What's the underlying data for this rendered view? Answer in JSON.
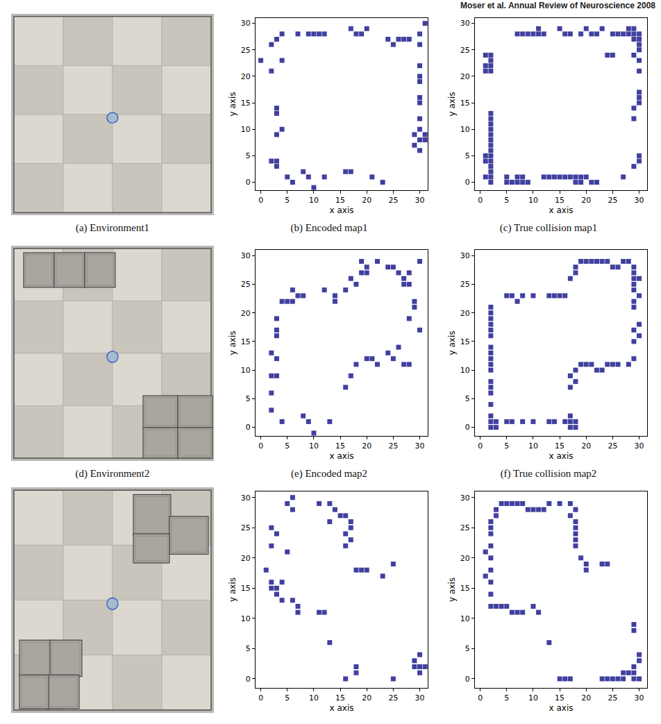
{
  "header": "Moser et al. Annual Review of Neuroscience 2008",
  "environments": [
    {
      "caption": "(a) Environment1"
    },
    {
      "caption": "(d) Environment2"
    },
    {}
  ],
  "chart_data": [
    {
      "type": "scatter",
      "caption": "(b) Encoded map1",
      "x_label": "x axis",
      "y_label": "y axis",
      "color": "#1f1f8f",
      "marker": "square",
      "xlim": [
        -1,
        31.5
      ],
      "ylim": [
        -1.5,
        31
      ],
      "xticks": [
        0,
        5,
        10,
        15,
        20,
        25,
        30
      ],
      "yticks": [
        0,
        5,
        10,
        15,
        20,
        25,
        30
      ],
      "x": [
        0,
        2,
        2,
        3,
        4,
        4,
        3,
        3,
        4,
        3,
        2,
        3,
        3,
        5,
        6,
        8,
        9,
        10,
        12,
        16,
        17,
        21,
        23,
        7,
        9,
        10,
        11,
        12,
        17,
        18,
        19,
        20,
        24,
        25,
        26,
        27,
        28,
        30,
        30,
        31,
        30,
        30,
        30,
        30,
        30,
        30,
        30,
        31,
        30,
        31,
        29,
        30,
        29
      ],
      "values": [
        23,
        21,
        26,
        27,
        28,
        23,
        14,
        13,
        10,
        9,
        4,
        4,
        3,
        1,
        0,
        2,
        1,
        -1,
        1,
        2,
        2,
        1,
        0,
        28,
        28,
        28,
        28,
        28,
        29,
        28,
        28,
        29,
        27,
        26,
        27,
        27,
        27,
        28,
        26,
        30,
        22,
        20,
        19,
        16,
        15,
        12,
        10,
        9,
        8,
        8,
        7,
        6,
        9
      ]
    },
    {
      "type": "scatter",
      "caption": "(c) True collision map1",
      "x_label": "x axis",
      "y_label": "y axis",
      "color": "#1f1f8f",
      "marker": "square",
      "xlim": [
        -1,
        31.5
      ],
      "ylim": [
        -1.5,
        31
      ],
      "xticks": [
        0,
        5,
        10,
        15,
        20,
        25,
        30
      ],
      "yticks": [
        0,
        5,
        10,
        15,
        20,
        25,
        30
      ],
      "x": [
        2,
        2,
        1,
        2,
        2,
        1,
        2,
        1,
        2,
        2,
        2,
        2,
        2,
        2,
        2,
        2,
        2,
        1,
        1,
        2,
        2,
        1,
        2,
        2,
        7,
        8,
        9,
        10,
        11,
        12,
        11,
        15,
        16,
        17,
        19,
        20,
        21,
        22,
        23,
        24,
        25,
        25,
        26,
        27,
        28,
        28,
        29,
        29,
        30,
        30,
        29,
        30,
        30,
        29,
        30,
        30,
        30,
        30,
        30,
        29,
        29,
        30,
        30,
        29,
        5,
        5,
        6,
        7,
        8,
        9,
        7,
        8,
        12,
        13,
        14,
        15,
        16,
        17,
        18,
        19,
        18,
        19,
        20,
        21,
        22,
        27
      ],
      "values": [
        0,
        1,
        1,
        2,
        3,
        4,
        4,
        5,
        5,
        6,
        7,
        8,
        9,
        10,
        11,
        12,
        13,
        21,
        22,
        22,
        23,
        24,
        24,
        21,
        28,
        28,
        28,
        28,
        28,
        28,
        29,
        29,
        28,
        28,
        28,
        29,
        28,
        28,
        29,
        24,
        24,
        28,
        28,
        28,
        28,
        29,
        29,
        28,
        28,
        27,
        27,
        26,
        25,
        24,
        23,
        21,
        17,
        16,
        15,
        14,
        12,
        5,
        4,
        3,
        1,
        0,
        0,
        0,
        0,
        0,
        1,
        1,
        1,
        1,
        1,
        1,
        1,
        1,
        1,
        1,
        0,
        0,
        1,
        0,
        0,
        1
      ]
    },
    {
      "type": "scatter",
      "caption": "(e) Encoded map2",
      "x_label": "x axis",
      "y_label": "y axis",
      "color": "#1f1f8f",
      "marker": "square",
      "xlim": [
        -1,
        31.5
      ],
      "ylim": [
        -1.5,
        31
      ],
      "xticks": [
        0,
        5,
        10,
        15,
        20,
        25,
        30
      ],
      "yticks": [
        0,
        5,
        10,
        15,
        20,
        25,
        30
      ],
      "x": [
        2,
        3,
        2,
        3,
        3,
        3,
        3,
        2,
        2,
        4,
        8,
        9,
        10,
        13,
        4,
        5,
        6,
        7,
        6,
        8,
        12,
        14,
        14,
        16,
        17,
        18,
        19,
        20,
        20,
        19,
        22,
        24,
        25,
        26,
        27,
        27,
        28,
        28,
        30,
        29,
        29,
        28,
        30,
        16,
        17,
        18,
        20,
        21,
        22,
        24,
        25,
        27,
        26,
        28
      ],
      "values": [
        13,
        9,
        9,
        12,
        16,
        17,
        19,
        6,
        3,
        1,
        2,
        1,
        -1,
        1,
        22,
        22,
        22,
        23,
        24,
        23,
        24,
        23,
        22,
        24,
        26,
        25,
        27,
        28,
        27,
        29,
        29,
        28,
        28,
        27,
        25,
        26,
        27,
        25,
        29,
        22,
        21,
        19,
        17,
        7,
        9,
        11,
        12,
        12,
        11,
        13,
        12,
        11,
        14,
        11
      ]
    },
    {
      "type": "scatter",
      "caption": "(f) True collision map2",
      "x_label": "x axis",
      "y_label": "y axis",
      "color": "#1f1f8f",
      "marker": "square",
      "xlim": [
        -1,
        31.5
      ],
      "ylim": [
        -1.5,
        31
      ],
      "xticks": [
        0,
        5,
        10,
        15,
        20,
        25,
        30
      ],
      "yticks": [
        0,
        5,
        10,
        15,
        20,
        25,
        30
      ],
      "x": [
        2,
        2,
        2,
        2,
        2,
        2,
        2,
        2,
        2,
        2,
        2,
        2,
        2,
        2,
        2,
        2,
        2,
        2,
        3,
        3,
        5,
        6,
        8,
        10,
        13,
        14,
        16,
        17,
        18,
        17,
        17,
        18,
        17,
        18,
        17,
        18,
        5,
        6,
        7,
        8,
        10,
        13,
        14,
        15,
        16,
        17,
        18,
        18,
        19,
        20,
        21,
        22,
        23,
        24,
        25,
        26,
        27,
        28,
        29,
        29,
        29,
        30,
        29,
        29,
        30,
        29,
        29,
        30,
        29,
        30,
        29,
        29,
        19,
        20,
        21,
        22,
        23,
        24,
        25,
        26,
        28
      ],
      "values": [
        0,
        1,
        2,
        4,
        6,
        7,
        8,
        10,
        11,
        12,
        13,
        14,
        16,
        17,
        18,
        19,
        20,
        21,
        1,
        0,
        1,
        1,
        1,
        1,
        1,
        1,
        1,
        0,
        0,
        1,
        2,
        1,
        7,
        8,
        9,
        10,
        23,
        23,
        22,
        23,
        23,
        23,
        23,
        23,
        23,
        26,
        27,
        28,
        29,
        29,
        29,
        29,
        29,
        29,
        28,
        28,
        29,
        29,
        28,
        27,
        26,
        26,
        25,
        24,
        23,
        22,
        21,
        18,
        17,
        16,
        15,
        12,
        11,
        11,
        11,
        10,
        10,
        11,
        11,
        11,
        11
      ]
    },
    {
      "type": "scatter",
      "x_label": "x axis",
      "y_label": "y axis",
      "color": "#1f1f8f",
      "marker": "square",
      "xlim": [
        -1,
        31.5
      ],
      "ylim": [
        -1.5,
        31
      ],
      "xticks": [
        0,
        5,
        10,
        15,
        20,
        25,
        30
      ],
      "yticks": [
        0,
        5,
        10,
        15,
        20,
        25,
        30
      ],
      "x": [
        1,
        2,
        2,
        3,
        3,
        4,
        4,
        2,
        2,
        3,
        5,
        5,
        6,
        6,
        6,
        7,
        7,
        11,
        13,
        13,
        14,
        15,
        16,
        16,
        17,
        17,
        16,
        17,
        13,
        11,
        12,
        18,
        19,
        20,
        23,
        25,
        18,
        18,
        16,
        25,
        29,
        30,
        31,
        29,
        30,
        30
      ],
      "values": [
        18,
        15,
        16,
        14,
        15,
        16,
        13,
        22,
        25,
        24,
        21,
        29,
        28,
        30,
        13,
        12,
        11,
        29,
        29,
        26,
        28,
        27,
        27,
        24,
        25,
        23,
        22,
        26,
        6,
        11,
        11,
        18,
        18,
        18,
        17,
        19,
        2,
        1,
        0,
        0,
        3,
        2,
        2,
        2,
        1,
        4
      ]
    },
    {
      "type": "scatter",
      "x_label": "x axis",
      "y_label": "y axis",
      "color": "#1f1f8f",
      "marker": "square",
      "xlim": [
        -1,
        31.5
      ],
      "ylim": [
        -1.5,
        31
      ],
      "xticks": [
        0,
        5,
        10,
        15,
        20,
        25,
        30
      ],
      "yticks": [
        0,
        5,
        10,
        15,
        20,
        25,
        30
      ],
      "x": [
        2,
        2,
        2,
        1,
        2,
        2,
        1,
        2,
        2,
        2,
        2,
        3,
        3,
        4,
        5,
        6,
        7,
        8,
        9,
        10,
        11,
        12,
        13,
        15,
        17,
        18,
        17,
        18,
        18,
        18,
        18,
        18,
        19,
        20,
        20,
        23,
        24,
        3,
        4,
        5,
        6,
        7,
        8,
        10,
        11,
        13,
        15,
        16,
        17,
        23,
        24,
        25,
        26,
        27,
        28,
        29,
        29,
        30,
        30,
        29,
        30,
        29,
        29,
        27
      ],
      "values": [
        12,
        14,
        16,
        17,
        18,
        20,
        21,
        22,
        24,
        25,
        26,
        27,
        28,
        29,
        29,
        29,
        29,
        29,
        28,
        28,
        28,
        28,
        29,
        29,
        29,
        28,
        27,
        26,
        25,
        24,
        23,
        22,
        20,
        19,
        18,
        19,
        19,
        12,
        12,
        12,
        11,
        11,
        11,
        12,
        11,
        6,
        0,
        0,
        0,
        0,
        0,
        0,
        0,
        0,
        1,
        1,
        2,
        3,
        4,
        0,
        0,
        8,
        9,
        1
      ]
    }
  ]
}
